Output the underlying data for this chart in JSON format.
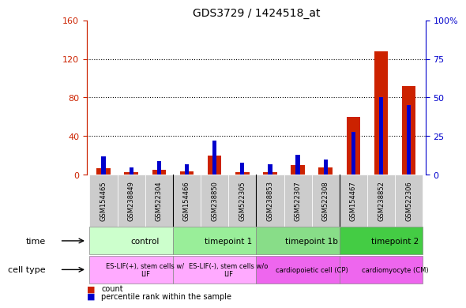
{
  "title": "GDS3729 / 1424518_at",
  "samples": [
    "GSM154465",
    "GSM238849",
    "GSM522304",
    "GSM154466",
    "GSM238850",
    "GSM522305",
    "GSM238853",
    "GSM522307",
    "GSM522308",
    "GSM154467",
    "GSM238852",
    "GSM522306"
  ],
  "red_values": [
    7,
    3,
    5,
    4,
    20,
    3,
    3,
    10,
    8,
    60,
    128,
    92
  ],
  "blue_values_pct": [
    12,
    5,
    9,
    7,
    22,
    8,
    7,
    13,
    10,
    28,
    50,
    45
  ],
  "ylim_left": [
    0,
    160
  ],
  "ylim_right": [
    0,
    100
  ],
  "yticks_left": [
    0,
    40,
    80,
    120,
    160
  ],
  "ytick_labels_left": [
    "0",
    "40",
    "80",
    "120",
    "160"
  ],
  "yticks_right": [
    0,
    25,
    50,
    75,
    100
  ],
  "ytick_labels_right": [
    "0",
    "25",
    "50",
    "75",
    "100%"
  ],
  "hlines": [
    40,
    80,
    120
  ],
  "groups": [
    {
      "label": "control",
      "start": 0,
      "end": 3,
      "color": "#ccffcc"
    },
    {
      "label": "timepoint 1",
      "start": 3,
      "end": 6,
      "color": "#99ee99"
    },
    {
      "label": "timepoint 1b",
      "start": 6,
      "end": 9,
      "color": "#88dd88"
    },
    {
      "label": "timepoint 2",
      "start": 9,
      "end": 12,
      "color": "#44cc44"
    }
  ],
  "cell_types": [
    {
      "label": "ES-LIF(+), stem cells w/\nLIF",
      "start": 0,
      "end": 3,
      "color": "#ffaaff"
    },
    {
      "label": "ES-LIF(-), stem cells w/o\nLIF",
      "start": 3,
      "end": 6,
      "color": "#ffaaff"
    },
    {
      "label": "cardiopoietic cell (CP)",
      "start": 6,
      "end": 9,
      "color": "#ee66ee"
    },
    {
      "label": "cardiomyocyte (CM)",
      "start": 9,
      "end": 12,
      "color": "#ee66ee"
    }
  ],
  "red_color": "#cc2200",
  "blue_color": "#0000cc",
  "red_bar_width": 0.5,
  "blue_bar_width": 0.15,
  "bg_color": "#e8e8e8",
  "tick_color_left": "#cc2200",
  "tick_color_right": "#0000cc",
  "legend_items": [
    {
      "color": "#cc2200",
      "label": "count"
    },
    {
      "color": "#0000cc",
      "label": "percentile rank within the sample"
    }
  ]
}
